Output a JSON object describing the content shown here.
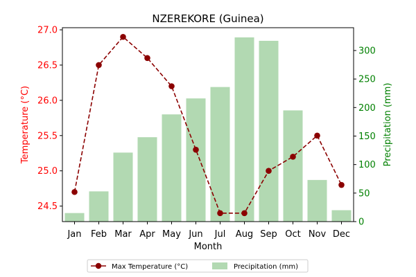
{
  "chart_data": {
    "type": "bar+line",
    "title": "NZEREKORE (Guinea)",
    "xlabel": "Month",
    "categories": [
      "Jan",
      "Feb",
      "Mar",
      "Apr",
      "May",
      "Jun",
      "Jul",
      "Aug",
      "Sep",
      "Oct",
      "Nov",
      "Dec"
    ],
    "left_axis": {
      "label": "Temperature (°C)",
      "color": "#ff0000",
      "range": [
        24.28,
        27.03
      ],
      "ticks": [
        "24.5",
        "25.0",
        "25.5",
        "26.0",
        "26.5",
        "27.0"
      ]
    },
    "right_axis": {
      "label": "Precipitation (mm)",
      "color": "#008000",
      "range": [
        0,
        340
      ],
      "ticks": [
        "0",
        "50",
        "100",
        "150",
        "200",
        "250",
        "300"
      ]
    },
    "series": [
      {
        "name": "Max Temperature (°C)",
        "kind": "line",
        "axis": "left",
        "style": "dashed",
        "marker": "circle",
        "color": "#8b0000",
        "values": [
          24.7,
          26.5,
          26.9,
          26.6,
          26.2,
          25.3,
          24.4,
          24.4,
          25.0,
          25.2,
          25.5,
          24.8
        ]
      },
      {
        "name": "Precipitation (mm)",
        "kind": "bar",
        "axis": "right",
        "color": "#b2d9b2",
        "values": [
          15,
          53,
          121,
          148,
          188,
          216,
          236,
          323,
          317,
          195,
          73,
          20
        ]
      }
    ],
    "legend_position": "bottom-center",
    "grid": false
  }
}
